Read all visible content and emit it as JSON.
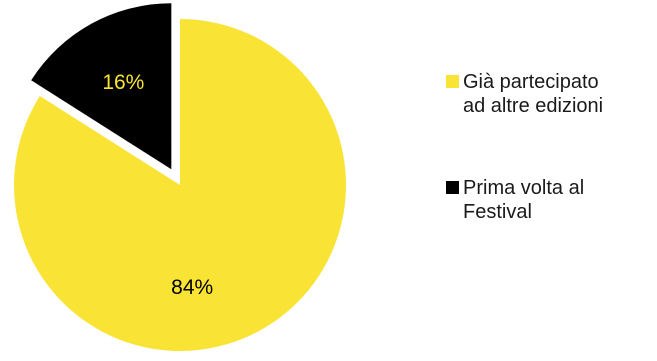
{
  "chart_data": {
    "type": "pie",
    "slices": [
      {
        "label": "Già partecipato ad altre edizioni",
        "value": 84,
        "value_label": "84%",
        "color": "#f9e334",
        "exploded": false
      },
      {
        "label": "Prima volta al Festival",
        "value": 16,
        "value_label": "16%",
        "color": "#000000",
        "exploded": true
      }
    ],
    "start_angle_deg": 0,
    "direction": "clockwise",
    "legend_position": "right",
    "title": ""
  },
  "legend": {
    "items": [
      {
        "line1": "Già partecipato",
        "line2": "ad altre edizioni",
        "color": "#f9e334"
      },
      {
        "line1": "Prima volta al",
        "line2": "Festival",
        "color": "#000000"
      }
    ]
  }
}
